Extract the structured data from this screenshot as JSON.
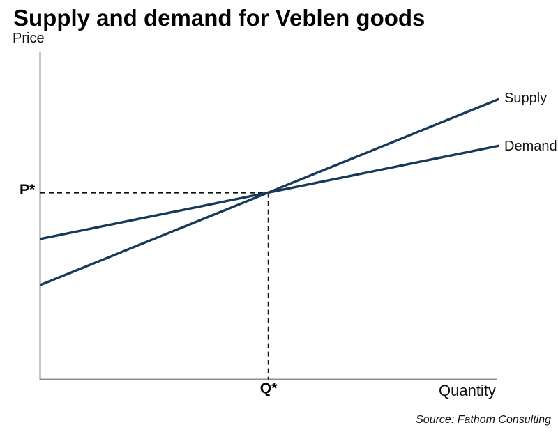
{
  "page": {
    "source_note": "Source: Fathom Consulting"
  },
  "chart_data": {
    "type": "line",
    "title": "Supply and demand for Veblen goods",
    "xlabel": "Quantity",
    "ylabel": "Price",
    "grid": false,
    "axes_numeric_ticks": false,
    "legend_position": "labels-at-right-line-ends",
    "series": [
      {
        "name": "Supply",
        "x_frac": [
          0.0,
          1.0
        ],
        "y_frac": [
          0.288,
          0.857
        ],
        "color": "#17395A"
      },
      {
        "name": "Demand",
        "x_frac": [
          0.0,
          1.0
        ],
        "y_frac": [
          0.429,
          0.714
        ],
        "color": "#17395A"
      }
    ],
    "equilibrium": {
      "price_label": "P*",
      "quantity_label": "Q*",
      "x_frac": 0.497,
      "y_frac": 0.57,
      "guides": "dashed lines from equilibrium point to price axis and quantity axis"
    },
    "colors": {
      "line": "#17395A",
      "axis": "#898F93",
      "dash": "#111111",
      "text": "#000000"
    },
    "source": "Source: Fathom Consulting"
  }
}
